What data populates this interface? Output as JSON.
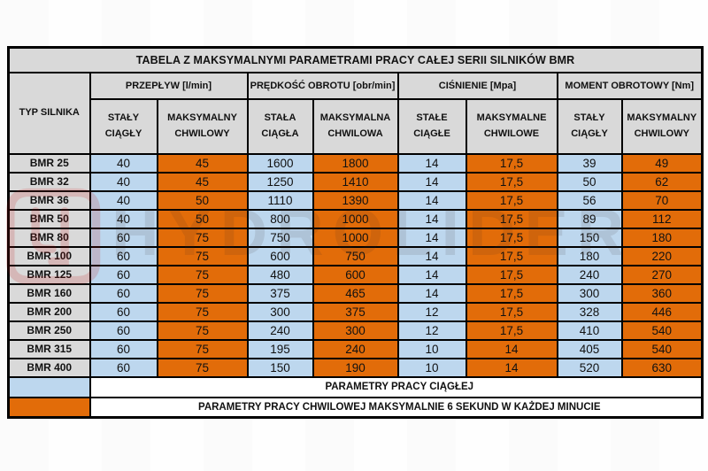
{
  "title": "TABELA Z MAKSYMALNYMI PARAMETRAMI PRACY CAŁEJ SERII SILNIKÓW BMR",
  "header": {
    "type_label": "TYP\nSILNIKA",
    "groups": [
      {
        "label": "PRZEPŁYW [l/min]",
        "sub": [
          "STAŁY\nCIĄGŁY",
          "MAKSYMALNY\nCHWILOWY"
        ]
      },
      {
        "label": "PRĘDKOŚĆ OBROTU [obr/min]",
        "sub": [
          "STAŁA\nCIĄGŁA",
          "MAKSYMALNA\nCHWILOWA"
        ]
      },
      {
        "label": "CIŚNIENIE [Mpa]",
        "sub": [
          "STAŁE\nCIĄGŁE",
          "MAKSYMALNE\nCHWILOWE"
        ]
      },
      {
        "label": "MOMENT OBROTOWY [Nm]",
        "sub": [
          "STAŁY\nCIĄGŁY",
          "MAKSYMALNY\nCHWILOWY"
        ]
      }
    ]
  },
  "rows": [
    {
      "type": "BMR 25",
      "values": [
        "40",
        "45",
        "1600",
        "1800",
        "14",
        "17,5",
        "39",
        "49"
      ]
    },
    {
      "type": "BMR 32",
      "values": [
        "40",
        "45",
        "1250",
        "1410",
        "14",
        "17,5",
        "50",
        "62"
      ]
    },
    {
      "type": "BMR 36",
      "values": [
        "40",
        "50",
        "1110",
        "1390",
        "14",
        "17,5",
        "56",
        "70"
      ]
    },
    {
      "type": "BMR 50",
      "values": [
        "40",
        "50",
        "800",
        "1000",
        "14",
        "17,5",
        "89",
        "112"
      ]
    },
    {
      "type": "BMR 80",
      "values": [
        "60",
        "75",
        "750",
        "1000",
        "14",
        "17,5",
        "150",
        "180"
      ]
    },
    {
      "type": "BMR 100",
      "values": [
        "60",
        "75",
        "600",
        "750",
        "14",
        "17,5",
        "180",
        "220"
      ]
    },
    {
      "type": "BMR 125",
      "values": [
        "60",
        "75",
        "480",
        "600",
        "14",
        "17,5",
        "240",
        "270"
      ]
    },
    {
      "type": "BMR 160",
      "values": [
        "60",
        "75",
        "375",
        "465",
        "14",
        "17,5",
        "300",
        "360"
      ]
    },
    {
      "type": "BMR 200",
      "values": [
        "60",
        "75",
        "300",
        "375",
        "12",
        "17,5",
        "328",
        "446"
      ]
    },
    {
      "type": "BMR 250",
      "values": [
        "60",
        "75",
        "240",
        "300",
        "12",
        "17,5",
        "410",
        "540"
      ]
    },
    {
      "type": "BMR 315",
      "values": [
        "60",
        "75",
        "195",
        "240",
        "10",
        "14",
        "405",
        "540"
      ]
    },
    {
      "type": "BMR 400",
      "values": [
        "60",
        "75",
        "150",
        "190",
        "10",
        "14",
        "520",
        "630"
      ]
    }
  ],
  "legend": [
    {
      "swatch_color": "#bdd7ee",
      "label": "PARAMETRY PRACY CIĄGŁEJ"
    },
    {
      "swatch_color": "#e26c09",
      "label": "PARAMETRY PRACY CHWILOWEJ MAKSYMALNIE 6 SEKUND W KAŻDEJ MINUCIE"
    }
  ],
  "watermark": {
    "text": "HYDROLIDER"
  },
  "colors": {
    "continuous_fill": "#bdd7ee",
    "momentary_fill": "#e26c09",
    "header_fill": "#d9d9d9",
    "border": "#000000",
    "watermark_red": "#c00000"
  }
}
